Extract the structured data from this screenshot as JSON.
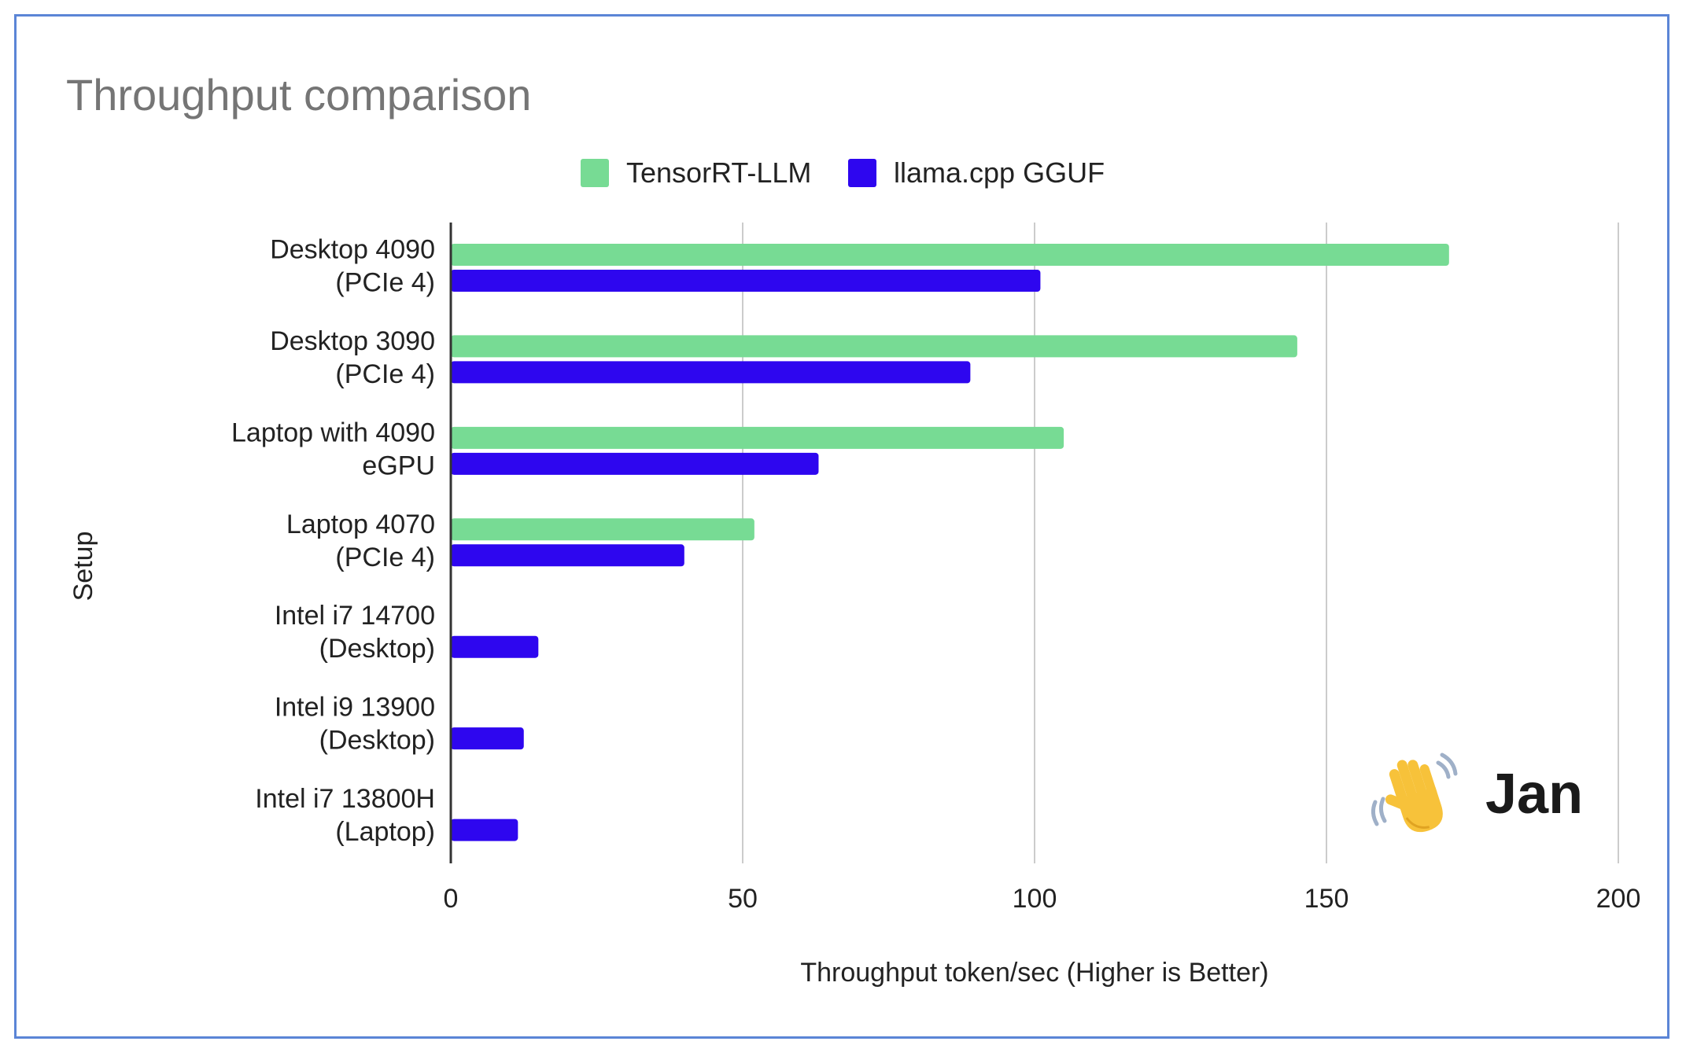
{
  "chart_data": {
    "type": "bar",
    "orientation": "horizontal",
    "title": "Throughput comparison",
    "xlabel": "Throughput token/sec (Higher is Better)",
    "ylabel": "Setup",
    "xlim": [
      0,
      200
    ],
    "xticks": [
      0,
      50,
      100,
      150,
      200
    ],
    "grid": true,
    "legend_position": "top-center",
    "categories": [
      [
        "Desktop 4090",
        "(PCIe 4)"
      ],
      [
        "Desktop 3090",
        "(PCIe 4)"
      ],
      [
        "Laptop with 4090",
        "eGPU"
      ],
      [
        "Laptop 4070",
        "(PCIe 4)"
      ],
      [
        "Intel i7 14700",
        "(Desktop)"
      ],
      [
        "Intel i9 13900",
        "(Desktop)"
      ],
      [
        "Intel i7 13800H",
        "(Laptop)"
      ]
    ],
    "series": [
      {
        "name": "TensorRT-LLM",
        "color": "#77db94",
        "values": [
          171,
          145,
          105,
          52,
          null,
          null,
          null
        ]
      },
      {
        "name": "llama.cpp GGUF",
        "color": "#2e06ef",
        "values": [
          101,
          89,
          63,
          40,
          15,
          12.5,
          11.5
        ]
      }
    ]
  },
  "brand": {
    "name": "Jan",
    "icon": "waving-hand-icon"
  }
}
